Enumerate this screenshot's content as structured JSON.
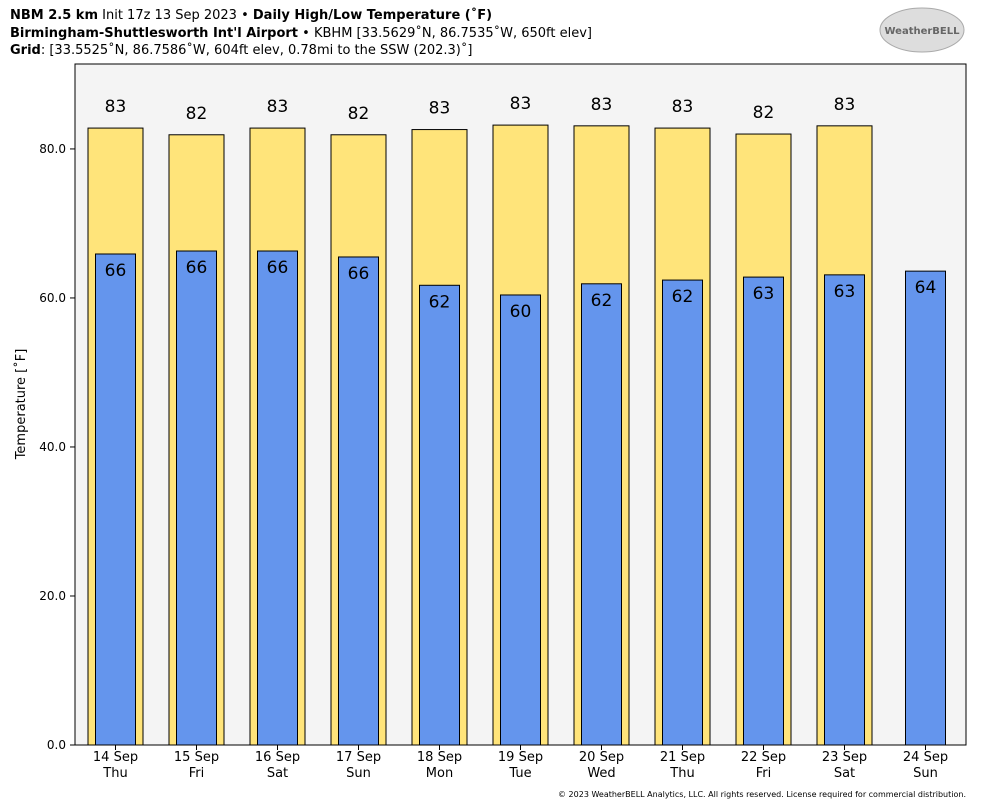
{
  "header": {
    "line1": [
      "NBM 2.5 km",
      "Init 17z 13 Sep 2023 •",
      "Daily High/Low Temperature (˚F)"
    ],
    "line2": [
      "Birmingham-Shuttlesworth Int'l Airport",
      "• KBHM [33.5629˚N, 86.7535˚W, 650ft elev]"
    ],
    "line3": [
      "Grid",
      ": [33.5525˚N, 86.7586˚W, 604ft elev, 0.78mi to the SSW (202.3)˚]"
    ]
  },
  "logo": "WeatherBELL",
  "footer": "© 2023 WeatherBELL Analytics, LLC. All rights reserved. License required for commercial distribution.",
  "chart_data": {
    "type": "bar",
    "y_label": "Temperature [˚F]",
    "categories": [
      "14 Sep",
      "15 Sep",
      "16 Sep",
      "17 Sep",
      "18 Sep",
      "19 Sep",
      "20 Sep",
      "21 Sep",
      "22 Sep",
      "23 Sep",
      "24 Sep"
    ],
    "weekdays": [
      "Thu",
      "Fri",
      "Sat",
      "Sun",
      "Mon",
      "Tue",
      "Wed",
      "Thu",
      "Fri",
      "Sat",
      "Sun"
    ],
    "series": [
      {
        "name": "High",
        "color": "#ffe47a",
        "values": [
          82.8,
          81.9,
          82.8,
          81.9,
          82.6,
          83.2,
          83.1,
          82.8,
          82.0,
          83.1,
          null
        ],
        "value_labels": [
          "83",
          "82",
          "83",
          "82",
          "83",
          "83",
          "83",
          "83",
          "82",
          "83",
          null
        ]
      },
      {
        "name": "Low",
        "color": "#6495ed",
        "values": [
          65.9,
          66.3,
          66.3,
          65.5,
          61.7,
          60.4,
          61.9,
          62.4,
          62.8,
          63.1,
          63.6
        ],
        "value_labels": [
          "66",
          "66",
          "66",
          "66",
          "62",
          "60",
          "62",
          "62",
          "63",
          "63",
          "64"
        ]
      }
    ],
    "ylim": [
      0,
      91.4
    ],
    "yticks": [
      {
        "value": 0,
        "label": "0.0"
      },
      {
        "value": 20,
        "label": "20.0"
      },
      {
        "value": 40,
        "label": "40.0"
      },
      {
        "value": 60,
        "label": "60.0"
      },
      {
        "value": 80,
        "label": "80.0"
      }
    ]
  }
}
